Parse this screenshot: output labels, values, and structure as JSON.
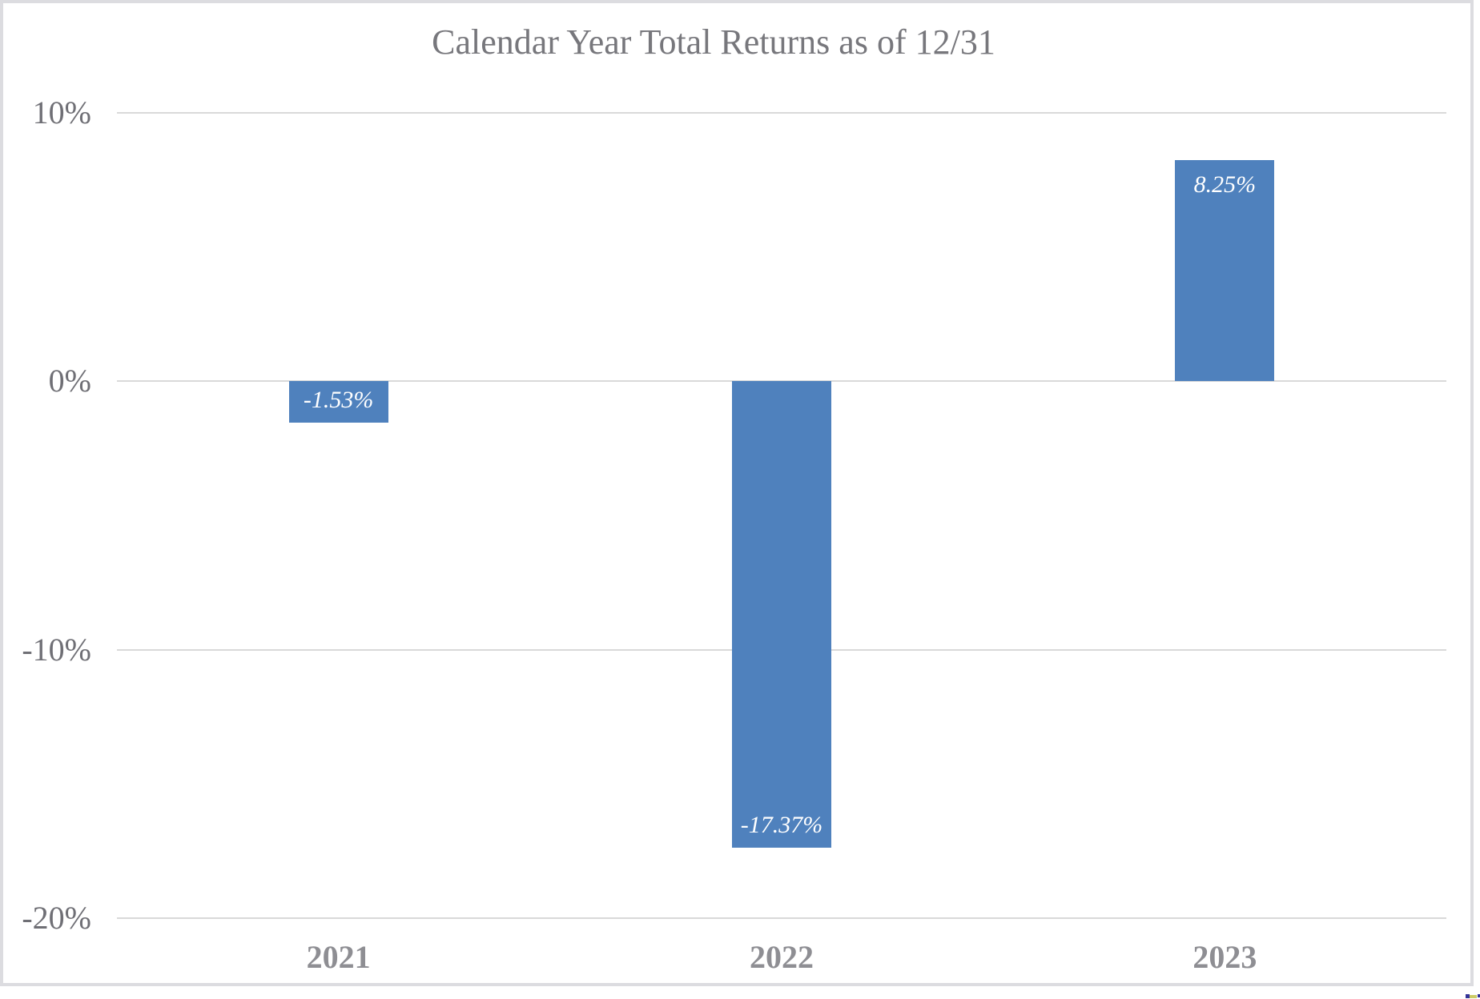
{
  "page": {
    "background": "#ffffff",
    "border_color": "#dcdce0"
  },
  "chart_data": {
    "type": "bar",
    "title": "Calendar Year Total Returns as of 12/31",
    "categories": [
      "2021",
      "2022",
      "2023"
    ],
    "values": [
      -1.53,
      -17.37,
      8.25
    ],
    "data_labels": [
      "-1.53%",
      "-17.37%",
      "8.25%"
    ],
    "xlabel": "",
    "ylabel": "",
    "axis": {
      "min": -20,
      "max": 10,
      "ticks": [
        {
          "value": 10,
          "label": "10%"
        },
        {
          "value": 0,
          "label": "0%"
        },
        {
          "value": -10,
          "label": "-10%"
        },
        {
          "value": -20,
          "label": "-20%"
        }
      ]
    },
    "grid": true,
    "legend": "none",
    "colors": {
      "bar": "#4f81bd",
      "gridline": "#d9d9d9",
      "title": "#77777c",
      "tick_label": "#6f6f75",
      "category_label": "#8e8e93",
      "data_label": "#ffffff"
    }
  }
}
